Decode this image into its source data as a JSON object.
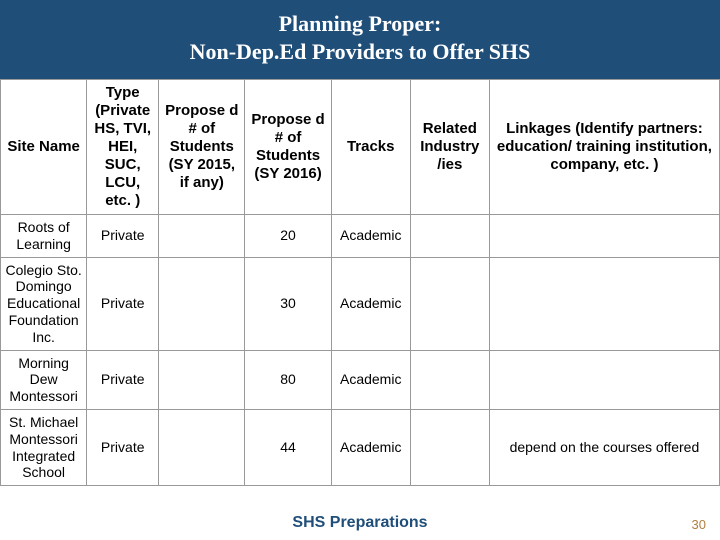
{
  "title_line1": "Planning Proper:",
  "title_line2": "Non-Dep.Ed Providers to Offer SHS",
  "headers": {
    "c0": "Site Name",
    "c1": "Type (Private HS, TVI, HEI, SUC, LCU, etc. )",
    "c2": "Propose d # of Students (SY 2015, if any)",
    "c3": "Propose d # of Students (SY 2016)",
    "c4": "Tracks",
    "c5": "Related Industry /ies",
    "c6": "Linkages (Identify partners: education/ training institution, company, etc. )"
  },
  "rows": [
    {
      "c0": "Roots of Learning",
      "c1": "Private",
      "c2": "",
      "c3": "20",
      "c4": "Academic",
      "c5": "",
      "c6": ""
    },
    {
      "c0": "Colegio Sto. Domingo Educational Foundation Inc.",
      "c1": "Private",
      "c2": "",
      "c3": "30",
      "c4": "Academic",
      "c5": "",
      "c6": ""
    },
    {
      "c0": "Morning Dew Montessori",
      "c1": "Private",
      "c2": "",
      "c3": "80",
      "c4": "Academic",
      "c5": "",
      "c6": ""
    },
    {
      "c0": "St. Michael Montessori Integrated School",
      "c1": "Private",
      "c2": "",
      "c3": "44",
      "c4": "Academic",
      "c5": "",
      "c6": "depend on the courses offered"
    }
  ],
  "footer": "SHS Preparations",
  "page_number": "30",
  "colors": {
    "title_bg": "#1f4e79",
    "title_fg": "#ffffff",
    "footer_color": "#1f4e79",
    "page_num_color": "#b08040",
    "border_color": "#999999"
  }
}
